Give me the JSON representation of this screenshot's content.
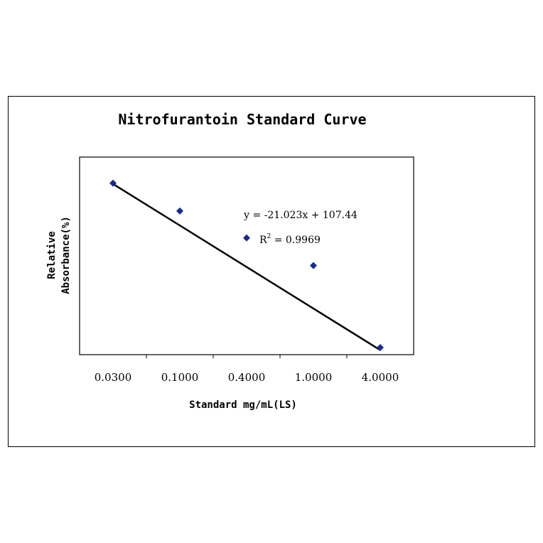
{
  "chart_data": {
    "type": "scatter",
    "title": "Nitrofurantoin Standard Curve",
    "xlabel": "Standard mg/mL(LS)",
    "ylabel_line1": "Relative",
    "ylabel_line2": "Absorbance(%)",
    "categories": [
      "0.0300",
      "0.1000",
      "0.4000",
      "1.0000",
      "4.0000"
    ],
    "series": [
      {
        "values": [
          86.8,
          72.7,
          59.1,
          45.1,
          3.6
        ],
        "color": "#1a2a8a"
      }
    ],
    "trendline": {
      "slope": -21.023,
      "intercept": 107.44,
      "color": "#000000"
    },
    "equation": "y = -21.023x + 107.44",
    "r2_prefix": "R",
    "r2_superscript": "2",
    "r2_value": " = 0.9969",
    "grid": false,
    "legend": "none"
  }
}
